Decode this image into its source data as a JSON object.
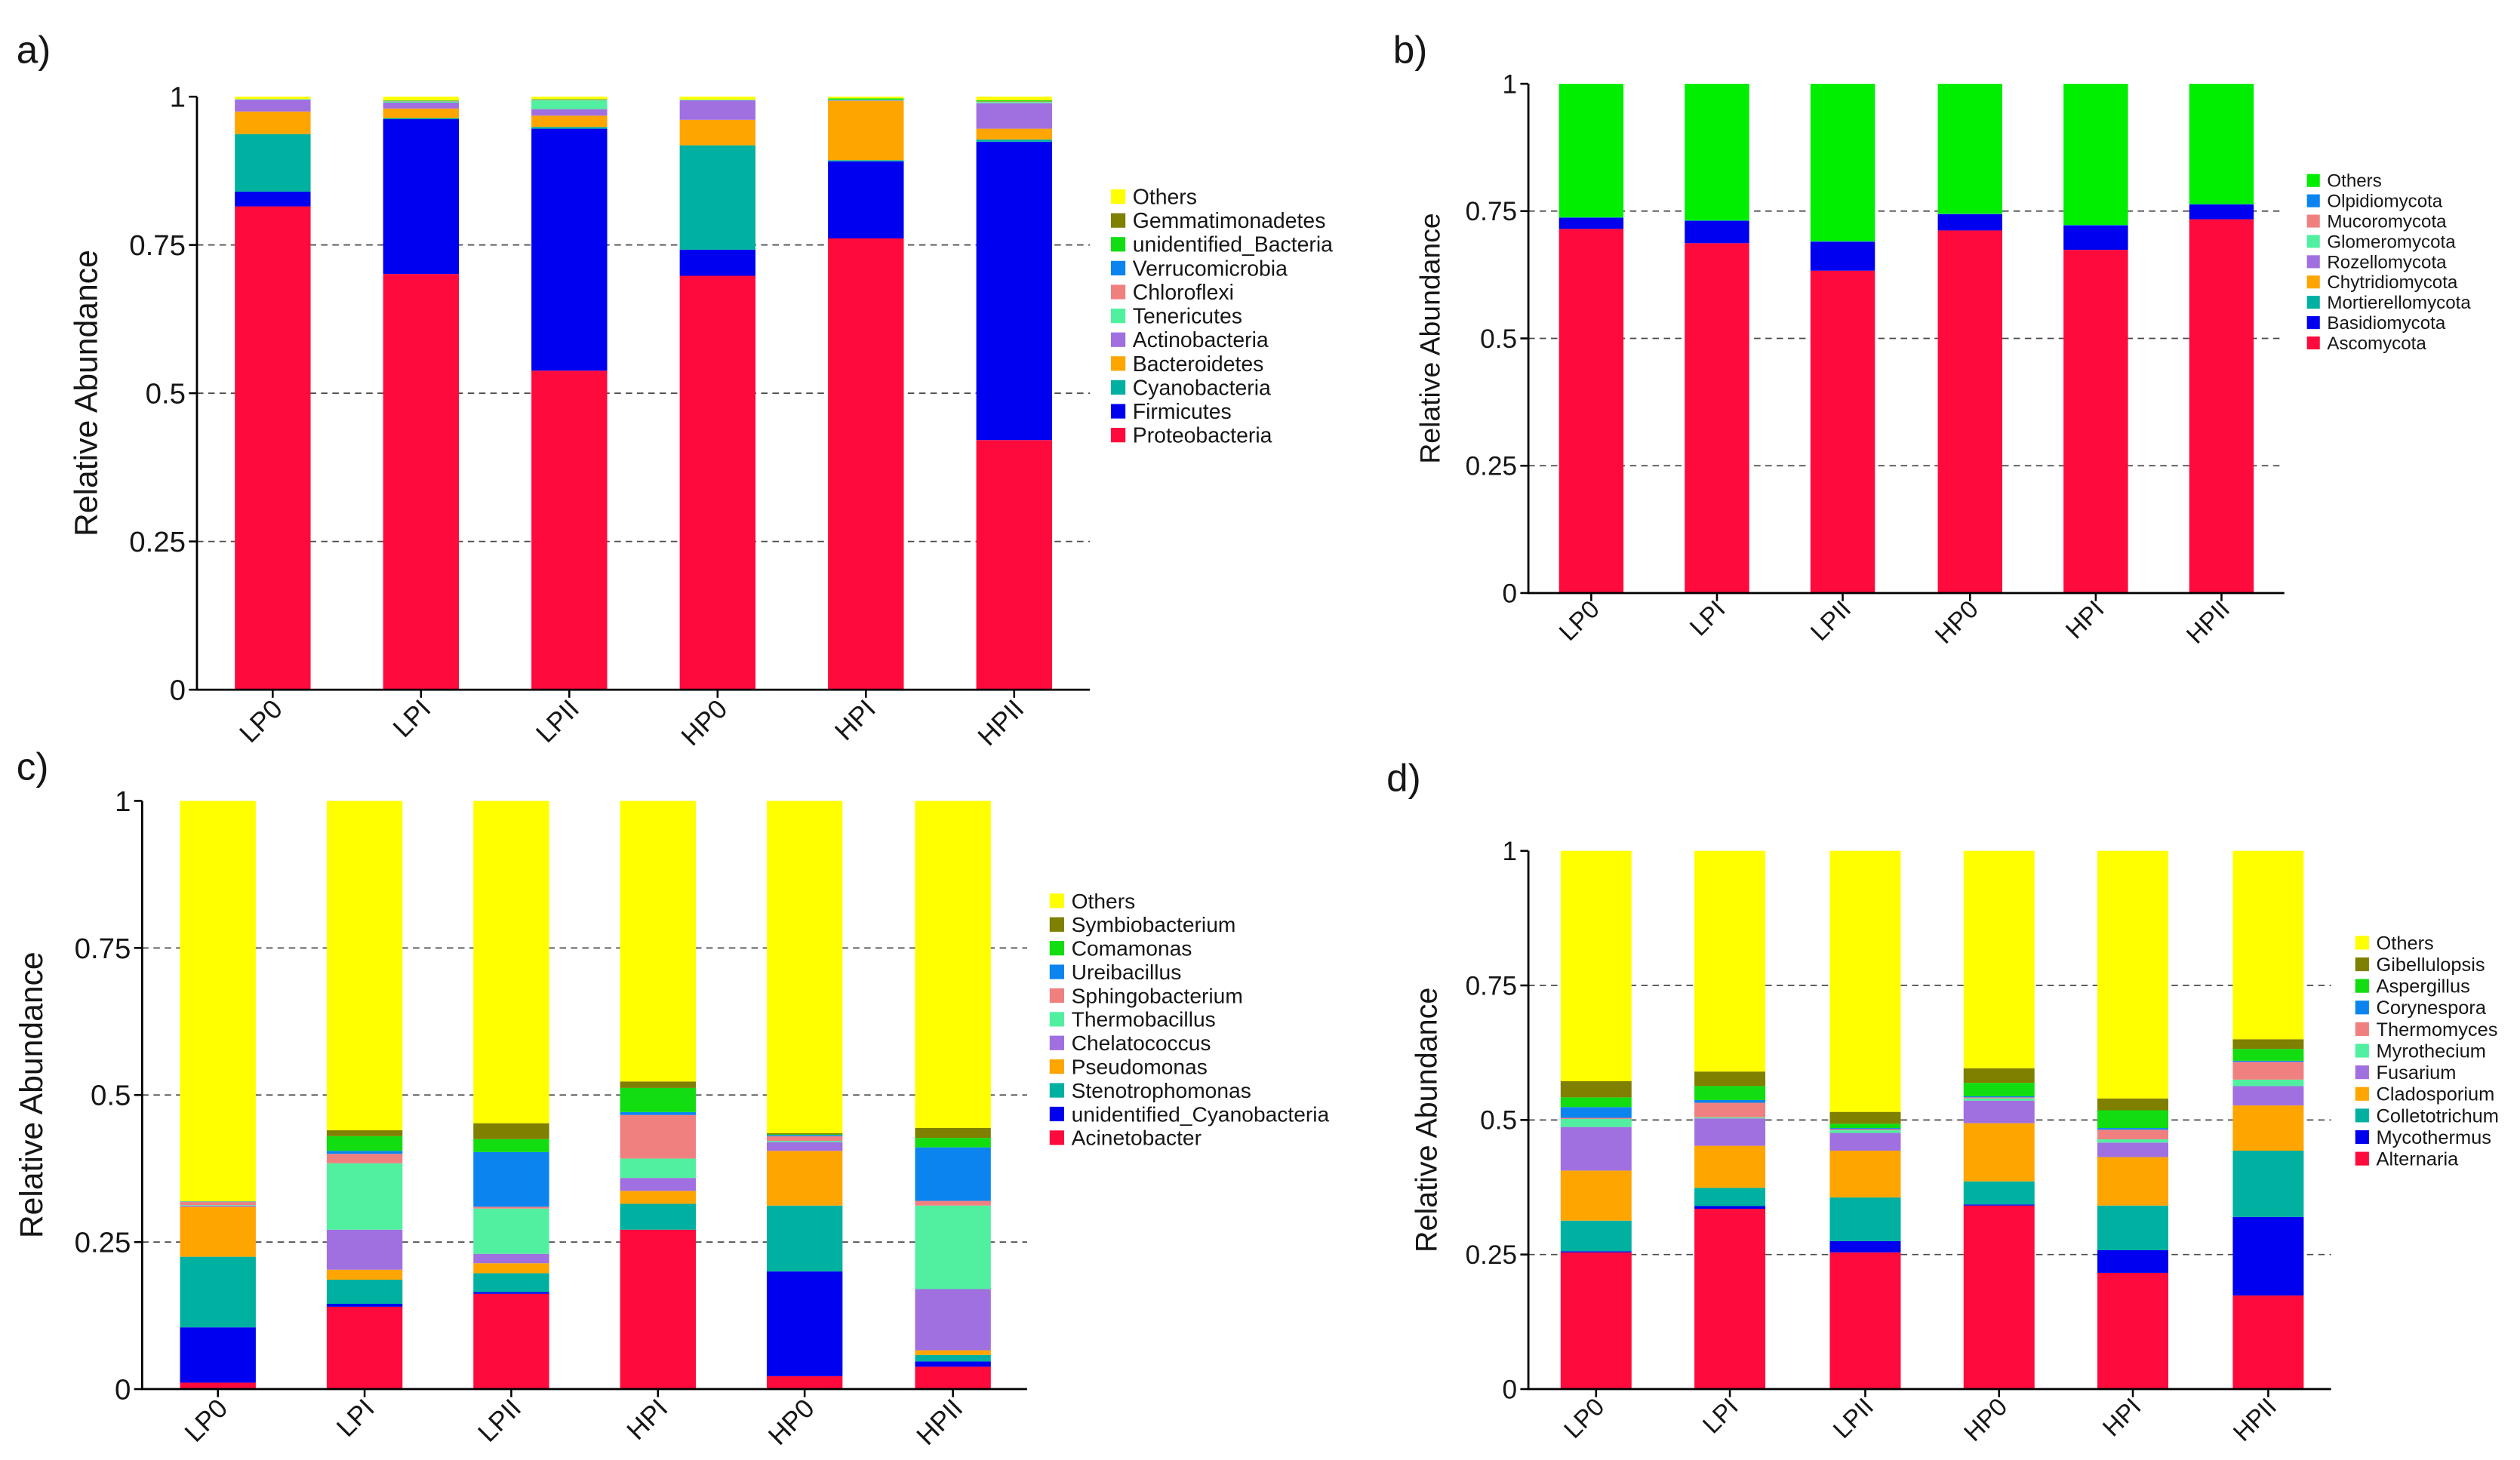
{
  "chart_data": [
    {
      "panel_label": "a)",
      "type": "bar",
      "stacked": true,
      "title": "",
      "xlabel": "",
      "ylabel": "Relative Abundance",
      "ylim": [
        0,
        1
      ],
      "yticks": [
        0,
        0.25,
        0.5,
        0.75,
        1
      ],
      "grid": "dashed horizontal",
      "legend": "right",
      "categories": [
        "LP0",
        "LPI",
        "LPII",
        "HP0",
        "HPI",
        "HPII"
      ],
      "series": [
        {
          "name": "Proteobacteria",
          "color": "#FF0A3C",
          "values": [
            0.815,
            0.701,
            0.538,
            0.698,
            0.761,
            0.421
          ]
        },
        {
          "name": "Firmicutes",
          "color": "#0000F0",
          "values": [
            0.025,
            0.261,
            0.408,
            0.044,
            0.13,
            0.503
          ]
        },
        {
          "name": "Cyanobacteria",
          "color": "#00B0A0",
          "values": [
            0.097,
            0.002,
            0.003,
            0.176,
            0.002,
            0.004
          ]
        },
        {
          "name": "Bacteroidetes",
          "color": "#FFA500",
          "values": [
            0.038,
            0.016,
            0.019,
            0.043,
            0.1,
            0.018
          ]
        },
        {
          "name": "Actinobacteria",
          "color": "#A070E0",
          "values": [
            0.02,
            0.01,
            0.011,
            0.033,
            0.001,
            0.043
          ]
        },
        {
          "name": "Tenericutes",
          "color": "#50F0A0",
          "values": [
            0.001,
            0.002,
            0.015,
            0.001,
            0.001,
            0.002
          ]
        },
        {
          "name": "Chloroflexi",
          "color": "#F08080",
          "values": [
            0.0,
            0.001,
            0.001,
            0.0,
            0.0,
            0.001
          ]
        },
        {
          "name": "Verrucomicrobia",
          "color": "#0B84F0",
          "values": [
            0.0,
            0.0,
            0.0,
            0.0,
            0.0,
            0.0
          ]
        },
        {
          "name": "unidentified_Bacteria",
          "color": "#11DD11",
          "values": [
            0.0,
            0.001,
            0.001,
            0.0,
            0.002,
            0.002
          ]
        },
        {
          "name": "Gemmatimonadetes",
          "color": "#7F7F00",
          "values": [
            0.0,
            0.0,
            0.0,
            0.0,
            0.0,
            0.0
          ]
        },
        {
          "name": "Others",
          "color": "#FFFF00",
          "values": [
            0.004,
            0.006,
            0.004,
            0.005,
            0.003,
            0.006
          ]
        }
      ]
    },
    {
      "panel_label": "b)",
      "type": "bar",
      "stacked": true,
      "title": "",
      "xlabel": "",
      "ylabel": "Relative Abundance",
      "ylim": [
        0,
        1
      ],
      "yticks": [
        0,
        0.25,
        0.5,
        0.75,
        1
      ],
      "grid": "dashed horizontal",
      "legend": "right",
      "categories": [
        "LP0",
        "LPI",
        "LPII",
        "HP0",
        "HPI",
        "HPII"
      ],
      "series": [
        {
          "name": "Ascomycota",
          "color": "#FF0A3C",
          "values": [
            0.715,
            0.687,
            0.633,
            0.712,
            0.674,
            0.734
          ]
        },
        {
          "name": "Basidiomycota",
          "color": "#0000F0",
          "values": [
            0.022,
            0.044,
            0.057,
            0.032,
            0.048,
            0.029
          ]
        },
        {
          "name": "Mortierellomycota",
          "color": "#00B0A0",
          "values": [
            0.001,
            0.001,
            0.001,
            0.001,
            0.001,
            0.001
          ]
        },
        {
          "name": "Chytridiomycota",
          "color": "#FFA500",
          "values": [
            0,
            0,
            0,
            0,
            0,
            0
          ]
        },
        {
          "name": "Rozellomycota",
          "color": "#A070E0",
          "values": [
            0,
            0,
            0,
            0,
            0,
            0
          ]
        },
        {
          "name": "Glomeromycota",
          "color": "#50F0A0",
          "values": [
            0,
            0,
            0,
            0,
            0,
            0
          ]
        },
        {
          "name": "Mucoromycota",
          "color": "#F08080",
          "values": [
            0,
            0,
            0,
            0,
            0,
            0
          ]
        },
        {
          "name": "Olpidiomycota",
          "color": "#0B84F0",
          "values": [
            0,
            0,
            0,
            0,
            0,
            0
          ]
        },
        {
          "name": "Others",
          "color": "#00EE00",
          "values": [
            0.262,
            0.268,
            0.309,
            0.255,
            0.277,
            0.236
          ]
        }
      ]
    },
    {
      "panel_label": "c)",
      "type": "bar",
      "stacked": true,
      "title": "",
      "xlabel": "",
      "ylabel": "Relative Abundance",
      "ylim": [
        0,
        1
      ],
      "yticks": [
        0,
        0.25,
        0.5,
        0.75,
        1
      ],
      "grid": "dashed horizontal",
      "legend": "right",
      "categories": [
        "LP0",
        "LPI",
        "LPII",
        "HPI",
        "HP0",
        "HPII"
      ],
      "series": [
        {
          "name": "Acinetobacter",
          "color": "#FF0A3C",
          "values": [
            0.011,
            0.14,
            0.162,
            0.271,
            0.022,
            0.038
          ]
        },
        {
          "name": "unidentified_Cyanobacteria",
          "color": "#0000F0",
          "values": [
            0.094,
            0.005,
            0.003,
            0.0,
            0.178,
            0.009
          ]
        },
        {
          "name": "Stenotrophomonas",
          "color": "#00B0A0",
          "values": [
            0.12,
            0.041,
            0.032,
            0.044,
            0.112,
            0.011
          ]
        },
        {
          "name": "Pseudomonas",
          "color": "#FFA500",
          "values": [
            0.085,
            0.017,
            0.017,
            0.022,
            0.093,
            0.008
          ]
        },
        {
          "name": "Chelatococcus",
          "color": "#A070E0",
          "values": [
            0.002,
            0.068,
            0.016,
            0.022,
            0.015,
            0.104
          ]
        },
        {
          "name": "Thermobacillus",
          "color": "#50F0A0",
          "values": [
            0.001,
            0.113,
            0.077,
            0.033,
            0.002,
            0.142
          ]
        },
        {
          "name": "Sphingobacterium",
          "color": "#F08080",
          "values": [
            0.005,
            0.016,
            0.003,
            0.074,
            0.008,
            0.008
          ]
        },
        {
          "name": "Ureibacillus",
          "color": "#0B84F0",
          "values": [
            0.001,
            0.005,
            0.093,
            0.005,
            0.002,
            0.091
          ]
        },
        {
          "name": "Comamonas",
          "color": "#11DD11",
          "values": [
            0.0,
            0.025,
            0.022,
            0.041,
            0.001,
            0.016
          ]
        },
        {
          "name": "Symbiobacterium",
          "color": "#7F7F00",
          "values": [
            0.0,
            0.01,
            0.027,
            0.011,
            0.002,
            0.017
          ]
        },
        {
          "name": "Others",
          "color": "#FFFF00",
          "values": [
            0.681,
            0.56,
            0.548,
            0.477,
            0.565,
            0.556
          ]
        }
      ]
    },
    {
      "panel_label": "d)",
      "type": "bar",
      "stacked": true,
      "title": "",
      "xlabel": "",
      "ylabel": "Relative Abundance",
      "ylim": [
        0,
        1
      ],
      "yticks": [
        0,
        0.25,
        0.5,
        0.75,
        1
      ],
      "grid": "dashed horizontal",
      "legend": "right",
      "categories": [
        "LP0",
        "LPI",
        "LPII",
        "HP0",
        "HPI",
        "HPII"
      ],
      "series": [
        {
          "name": "Alternaria",
          "color": "#FF0A3C",
          "values": [
            0.254,
            0.335,
            0.254,
            0.341,
            0.216,
            0.174
          ]
        },
        {
          "name": "Mycothermus",
          "color": "#0000F0",
          "values": [
            0.002,
            0.005,
            0.021,
            0.002,
            0.042,
            0.146
          ]
        },
        {
          "name": "Colletotrichum",
          "color": "#00B0A0",
          "values": [
            0.057,
            0.034,
            0.081,
            0.043,
            0.083,
            0.123
          ]
        },
        {
          "name": "Cladosporium",
          "color": "#FFA500",
          "values": [
            0.093,
            0.078,
            0.087,
            0.108,
            0.09,
            0.084
          ]
        },
        {
          "name": "Fusarium",
          "color": "#A070E0",
          "values": [
            0.081,
            0.051,
            0.033,
            0.042,
            0.027,
            0.036
          ]
        },
        {
          "name": "Myrothecium",
          "color": "#50F0A0",
          "values": [
            0.015,
            0.002,
            0.005,
            0.004,
            0.006,
            0.012
          ]
        },
        {
          "name": "Thermomyces",
          "color": "#F08080",
          "values": [
            0.002,
            0.027,
            0.002,
            0.002,
            0.018,
            0.033
          ]
        },
        {
          "name": "Corynespora",
          "color": "#0B84F0",
          "values": [
            0.02,
            0.005,
            0.002,
            0.002,
            0.003,
            0.002
          ]
        },
        {
          "name": "Aspergillus",
          "color": "#11DD11",
          "values": [
            0.018,
            0.026,
            0.008,
            0.025,
            0.033,
            0.022
          ]
        },
        {
          "name": "Gibellulopsis",
          "color": "#7F7F00",
          "values": [
            0.03,
            0.027,
            0.022,
            0.027,
            0.022,
            0.018
          ]
        },
        {
          "name": "Others",
          "color": "#FFFF00",
          "values": [
            0.428,
            0.41,
            0.485,
            0.404,
            0.46,
            0.35
          ]
        }
      ]
    }
  ]
}
